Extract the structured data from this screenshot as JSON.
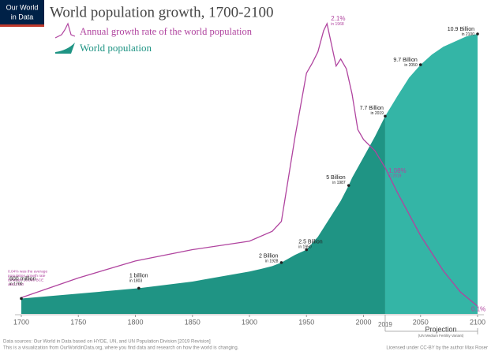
{
  "logo": [
    "Our World",
    "in Data"
  ],
  "chart_data": {
    "type": "area",
    "title": "World population growth, 1700-2100",
    "note": [
      "0.04% was the average",
      "population growth rate",
      "between 10,000 BCE",
      "and 1700"
    ],
    "xlim": [
      1700,
      2100
    ],
    "xticks": [
      1700,
      1750,
      1800,
      1850,
      1900,
      1950,
      2000,
      2050,
      2100
    ],
    "ylim": [
      0,
      11.3
    ],
    "y2lim": [
      0.045,
      2.1
    ],
    "projection": {
      "start": 2019,
      "label": "Projection",
      "note": "(UN Medium Fertility Variant)",
      "color": "#34b5a6"
    },
    "series": [
      {
        "name": "World population",
        "type": "area",
        "color": "#1f9484",
        "x": [
          1700,
          1750,
          1803,
          1850,
          1900,
          1910,
          1920,
          1928,
          1940,
          1950,
          1960,
          1970,
          1980,
          1987,
          1990,
          2000,
          2010,
          2019,
          2030,
          2040,
          2050,
          2060,
          2070,
          2080,
          2090,
          2100
        ],
        "values": [
          0.6,
          0.79,
          1,
          1.26,
          1.65,
          1.75,
          1.86,
          2,
          2.3,
          2.5,
          3,
          3.7,
          4.4,
          5,
          5.3,
          6.1,
          6.9,
          7.7,
          8.5,
          9.2,
          9.7,
          10.1,
          10.4,
          10.6,
          10.8,
          10.9
        ],
        "value_labels": [
          "600 million",
          null,
          "1 billion",
          null,
          null,
          null,
          null,
          "2 Billion",
          null,
          "2.5 Billion",
          null,
          null,
          null,
          "5 Billion",
          null,
          null,
          null,
          "7.7 Billion",
          null,
          null,
          "9.7 Billion",
          null,
          null,
          null,
          null,
          "10.9 Billion"
        ],
        "label_notes": [
          "in 1700",
          null,
          "in 1803",
          null,
          null,
          null,
          null,
          "in 1928",
          null,
          "in 1950",
          null,
          null,
          null,
          "in 1987",
          null,
          null,
          null,
          "in 2019",
          null,
          null,
          "in 2050",
          null,
          null,
          null,
          null,
          "in 2100"
        ]
      },
      {
        "name": "Annual growth rate of the world population",
        "type": "line",
        "axis": "y2",
        "color": "#b0449f",
        "x": [
          1700,
          1750,
          1800,
          1850,
          1900,
          1920,
          1928,
          1940,
          1950,
          1955,
          1960,
          1965,
          1968,
          1972,
          1976,
          1980,
          1985,
          1990,
          1995,
          2000,
          2010,
          2019,
          2030,
          2050,
          2070,
          2085,
          2100
        ],
        "values": [
          0.16,
          0.3,
          0.42,
          0.5,
          0.56,
          0.63,
          0.7,
          1.3,
          1.75,
          1.82,
          1.9,
          2.05,
          2.1,
          1.95,
          1.8,
          1.85,
          1.78,
          1.6,
          1.35,
          1.28,
          1.2,
          1.08,
          0.9,
          0.6,
          0.35,
          0.2,
          0.1
        ],
        "value_labels": [
          null,
          null,
          null,
          null,
          null,
          null,
          null,
          null,
          null,
          null,
          null,
          null,
          "2.1%",
          null,
          null,
          null,
          null,
          null,
          null,
          null,
          null,
          "1.08%",
          null,
          null,
          null,
          null,
          "0.1%"
        ],
        "label_notes": [
          null,
          null,
          null,
          null,
          null,
          null,
          null,
          null,
          null,
          null,
          null,
          null,
          "in 1968",
          null,
          null,
          null,
          null,
          null,
          null,
          null,
          null,
          "in 2019",
          null,
          null,
          null,
          null,
          null
        ]
      }
    ]
  },
  "footer": {
    "sources": "Data sources: Our World in Data based on HYDE, UN, and UN Population Division [2019 Revision]",
    "visualization": "This is a visualization from OurWorldinData.org, where you find data and research on how the world is changing.",
    "license": "Licensed under CC-BY by the author Max Roser"
  }
}
